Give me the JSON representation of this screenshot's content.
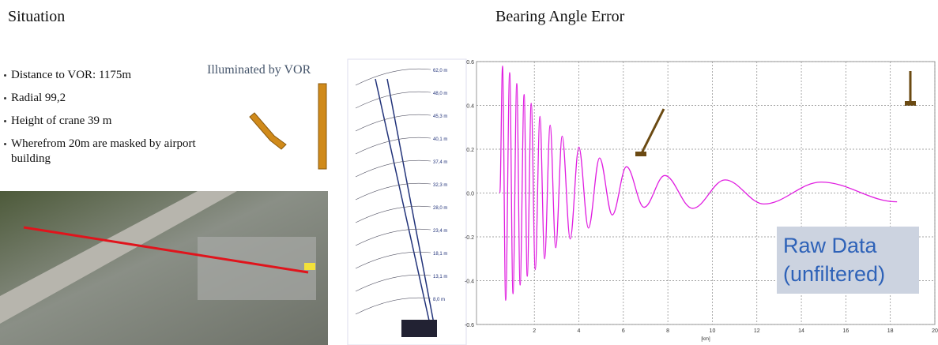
{
  "slide": {
    "title_left": "Situation",
    "title_right": "Bearing Angle Error",
    "bullets": [
      "Distance to VOR: 1175m",
      "Radial 99,2",
      "Height of crane 39 m",
      "Wherefrom 20m are masked by airport building"
    ],
    "image_caption": "Illuminated by VOR",
    "crane_heights": [
      "62,0 m",
      "48,0 m",
      "45,3 m",
      "40,1 m",
      "37,4 m",
      "32,3 m",
      "28,0 m",
      "23,4 m",
      "18,1 m",
      "13,1 m",
      "8,0 m"
    ]
  },
  "chart_data": {
    "type": "line",
    "x": [
      0.45,
      0.57,
      0.71,
      0.89,
      1.04,
      1.21,
      1.36,
      1.54,
      1.68,
      1.86,
      2.04,
      2.25,
      2.46,
      2.71,
      2.96,
      3.25,
      3.61,
      4.0,
      4.43,
      4.93,
      5.5,
      6.14,
      6.93,
      7.86,
      9.11,
      10.57,
      12.32,
      14.89,
      18.3
    ],
    "values": [
      0,
      0.58,
      -0.49,
      0.55,
      -0.46,
      0.5,
      -0.42,
      0.45,
      -0.38,
      0.41,
      -0.35,
      0.35,
      -0.3,
      0.31,
      -0.25,
      0.26,
      -0.21,
      0.21,
      -0.16,
      0.16,
      -0.1,
      0.12,
      -0.065,
      0.08,
      -0.07,
      0.06,
      -0.05,
      0.05,
      -0.04
    ],
    "color": "#e01ee0",
    "xlabel": "[km]",
    "xlim": [
      -0.6,
      20
    ],
    "ylim": [
      -0.6,
      0.6
    ],
    "xticks": [
      2,
      4,
      6,
      8,
      10,
      12,
      14,
      16,
      18,
      20
    ],
    "yticks": [
      -0.6,
      -0.4,
      -0.2,
      {
        "value": 0,
        "label": "0.0"
      },
      0.2,
      0.4,
      0.6
    ],
    "grid": true,
    "annotation": [
      "Raw Data",
      "(unfiltered)"
    ]
  }
}
